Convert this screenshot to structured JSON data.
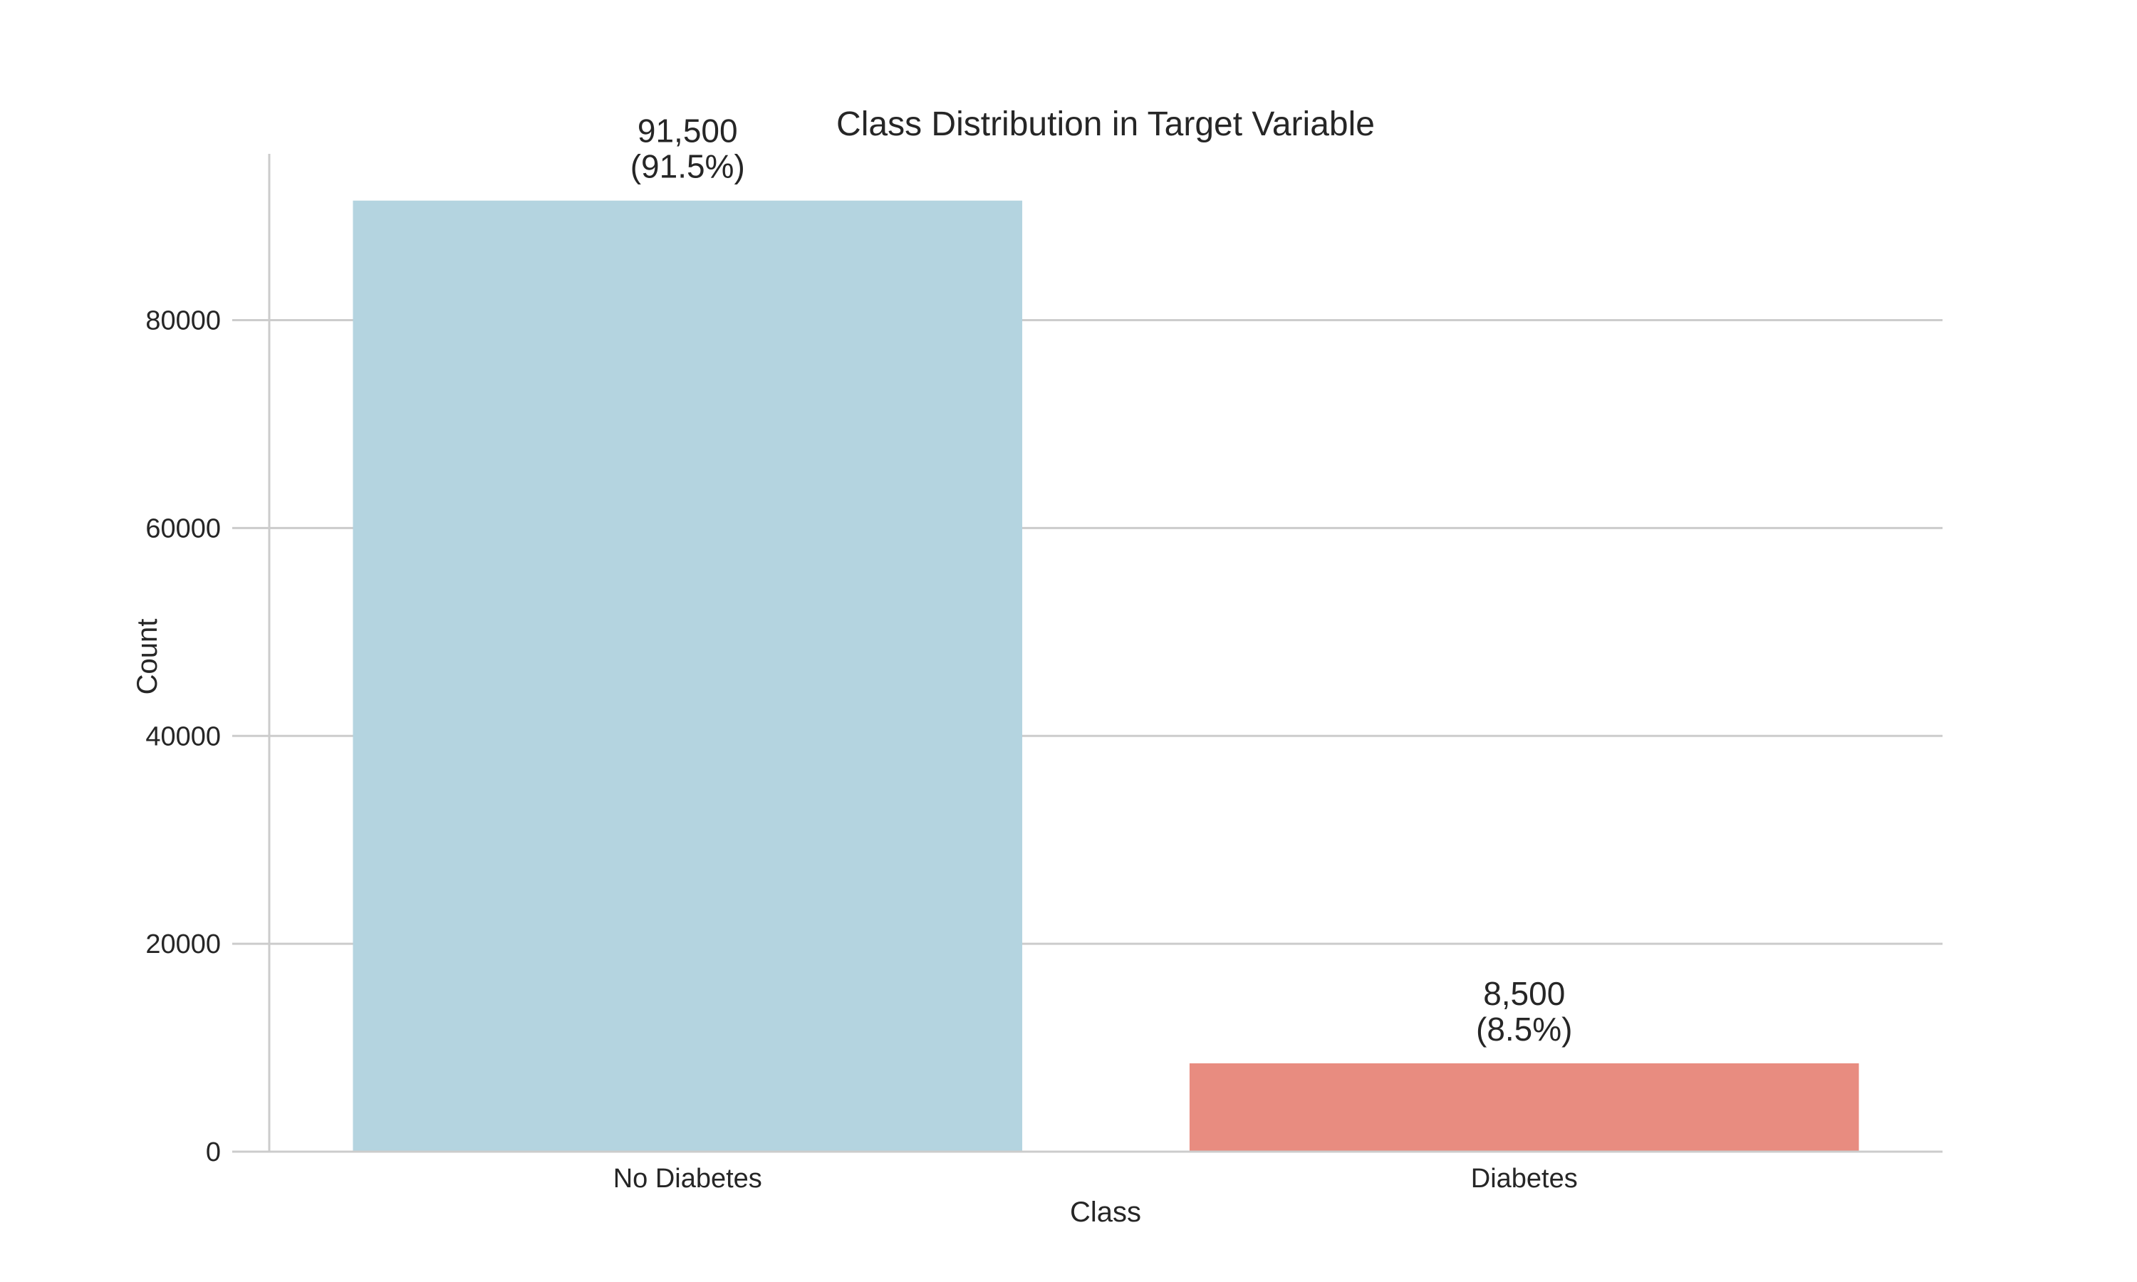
{
  "chart_data": {
    "type": "bar",
    "title": "Class Distribution in Target Variable",
    "xlabel": "Class",
    "ylabel": "Count",
    "categories": [
      "No Diabetes",
      "Diabetes"
    ],
    "values": [
      91500,
      8500
    ],
    "value_labels": [
      "91,500",
      "8,500"
    ],
    "percent_labels": [
      "(91.5%)",
      "(8.5%)"
    ],
    "colors": [
      "#b4d4e0",
      "#e88c80"
    ],
    "ylim": [
      0,
      96000
    ],
    "yticks": [
      0,
      20000,
      40000,
      60000,
      80000
    ],
    "ytick_labels": [
      "0",
      "20000",
      "40000",
      "60000",
      "80000"
    ],
    "grid": "horizontal",
    "legend": "none"
  }
}
